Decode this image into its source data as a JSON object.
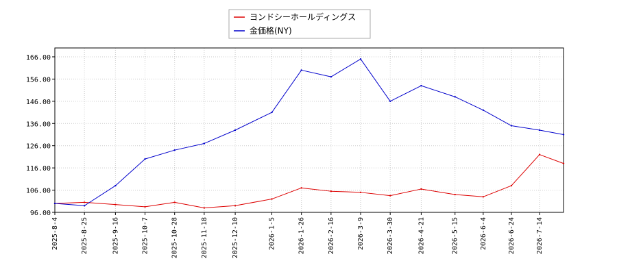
{
  "chart_data": {
    "type": "line",
    "ylim": [
      96,
      170
    ],
    "yticks": [
      96,
      106,
      116,
      126,
      136,
      146,
      156,
      166
    ],
    "ytick_labels": [
      "96.00",
      "106.00",
      "116.00",
      "126.00",
      "136.00",
      "146.00",
      "156.00",
      "166.00"
    ],
    "xtick_labels": [
      "2025-8-4",
      "2025-8-25",
      "2025-9-16",
      "2025-10-7",
      "2025-10-28",
      "2025-11-18",
      "2025-12-10",
      "2026-1-5",
      "2026-1-26",
      "2026-2-16",
      "2026-3-9",
      "2026-3-30",
      "2026-4-21",
      "2026-5-15",
      "2026-6-4",
      "2026-6-24",
      "2026-7-14"
    ],
    "grid": true,
    "legend_position": "top-center",
    "series": [
      {
        "name": "ヨンドシーホールディングス",
        "color": "#dd0000",
        "x": [
          "2025-8-4",
          "2025-8-25",
          "2025-9-16",
          "2025-10-7",
          "2025-10-28",
          "2025-11-18",
          "2025-12-10",
          "2026-1-5",
          "2026-1-26",
          "2026-2-16",
          "2026-3-9",
          "2026-3-30",
          "2026-4-21",
          "2026-5-15",
          "2026-6-4",
          "2026-6-24",
          "2026-7-14",
          "2026-7-31"
        ],
        "values": [
          100.0,
          100.5,
          99.5,
          98.5,
          100.5,
          98.0,
          99.0,
          102.0,
          107.0,
          105.5,
          105.0,
          103.5,
          106.5,
          104.0,
          103.0,
          108.0,
          122.0,
          118.0
        ]
      },
      {
        "name": "金価格(NY)",
        "color": "#0000cc",
        "x": [
          "2025-8-4",
          "2025-8-25",
          "2025-9-16",
          "2025-10-7",
          "2025-10-28",
          "2025-11-18",
          "2025-12-10",
          "2026-1-5",
          "2026-1-26",
          "2026-2-16",
          "2026-3-9",
          "2026-3-30",
          "2026-4-21",
          "2026-5-15",
          "2026-6-4",
          "2026-6-24",
          "2026-7-14",
          "2026-7-31"
        ],
        "values": [
          100.0,
          99.0,
          108.0,
          120.0,
          124.0,
          127.0,
          133.0,
          141.0,
          160.0,
          157.0,
          165.0,
          146.0,
          153.0,
          148.0,
          142.0,
          135.0,
          133.0,
          131.0
        ]
      }
    ]
  }
}
